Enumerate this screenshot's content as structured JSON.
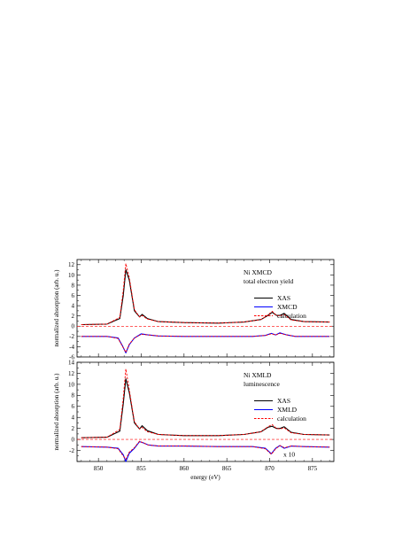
{
  "figure": {
    "xlabel": "energy (eV)",
    "x_ticks": [
      850,
      855,
      860,
      865,
      870,
      875
    ],
    "xlim": [
      847.5,
      877.5
    ]
  },
  "colors": {
    "xas": "#000000",
    "dichroism": "#0000ff",
    "calculation": "#ff0000",
    "zero_line": "#ff0000"
  },
  "chart_data": [
    {
      "type": "line",
      "panel": "top",
      "annotation_lines": [
        "Ni XMCD",
        "total electron yield"
      ],
      "ylabel": "normalized absorption (arb. u.)",
      "ylim": [
        -6,
        13
      ],
      "y_ticks": [
        -6,
        -4,
        -2,
        0,
        2,
        4,
        6,
        8,
        10,
        12
      ],
      "grid": false,
      "legend_placement": "right",
      "series": [
        {
          "name": "XAS",
          "style": "solid",
          "color": "#000000",
          "x": [
            848,
            851,
            852.5,
            852.9,
            853.2,
            853.6,
            854.2,
            854.8,
            855.1,
            855.7,
            857,
            860,
            864,
            867,
            869,
            869.8,
            870.3,
            870.8,
            871.2,
            871.7,
            872.5,
            874,
            877
          ],
          "y": [
            0.3,
            0.4,
            1.5,
            6.0,
            11.0,
            9.0,
            3.0,
            1.8,
            2.3,
            1.5,
            0.9,
            0.7,
            0.6,
            0.8,
            1.3,
            2.1,
            2.7,
            2.1,
            2.1,
            2.5,
            1.3,
            0.9,
            0.8
          ]
        },
        {
          "name": "XMCD",
          "style": "solid",
          "color": "#0000ff",
          "x": [
            848,
            851,
            852.3,
            852.8,
            853.2,
            853.6,
            854.2,
            855,
            855.8,
            857,
            860,
            864,
            868,
            869.5,
            870.2,
            870.7,
            871.2,
            872,
            873,
            877
          ],
          "y": [
            -2.0,
            -2.0,
            -2.3,
            -3.8,
            -5.2,
            -3.6,
            -2.3,
            -1.5,
            -1.7,
            -1.9,
            -2.0,
            -2.0,
            -2.0,
            -1.8,
            -1.4,
            -1.7,
            -1.3,
            -1.7,
            -2.0,
            -2.0
          ]
        },
        {
          "name": "calculation",
          "style": "dashed",
          "color": "#ff0000",
          "x": [
            848,
            851,
            852.5,
            852.9,
            853.2,
            853.6,
            854.2,
            854.8,
            855.1,
            855.7,
            857,
            860,
            864,
            867,
            869,
            869.8,
            870.3,
            870.8,
            871.2,
            871.7,
            872.5,
            874,
            877
          ],
          "y": [
            0.3,
            0.4,
            1.7,
            7.0,
            12.2,
            9.5,
            3.2,
            1.8,
            2.1,
            1.4,
            0.9,
            0.7,
            0.6,
            0.8,
            1.3,
            2.2,
            2.9,
            2.1,
            2.0,
            2.3,
            1.2,
            0.9,
            0.8
          ]
        },
        {
          "name": "",
          "role": "calculation-dichroism",
          "style": "dashed",
          "color": "#ff0000",
          "x": [
            848,
            851,
            852.3,
            852.8,
            853.2,
            853.6,
            854.2,
            855,
            855.8,
            857,
            860,
            864,
            868,
            869.5,
            870.2,
            870.7,
            871.2,
            872,
            873,
            877
          ],
          "y": [
            -2.0,
            -2.0,
            -2.4,
            -3.9,
            -5.1,
            -3.5,
            -2.3,
            -1.6,
            -1.7,
            -1.9,
            -2.0,
            -2.0,
            -2.0,
            -1.8,
            -1.5,
            -1.7,
            -1.4,
            -1.7,
            -2.0,
            -2.0
          ]
        }
      ],
      "reference_lines": [
        {
          "y": 0,
          "style": "dashed",
          "color": "#ff0000"
        }
      ]
    },
    {
      "type": "line",
      "panel": "bottom",
      "annotation_lines": [
        "Ni XMLD",
        "luminescence"
      ],
      "scale_note": "x 10",
      "ylabel": "normalized absorption (arb. u.)",
      "ylim": [
        -4,
        14
      ],
      "y_ticks": [
        -4,
        -2,
        0,
        2,
        4,
        6,
        8,
        10,
        12,
        14
      ],
      "grid": false,
      "legend_placement": "right",
      "series": [
        {
          "name": "XAS",
          "style": "solid",
          "color": "#000000",
          "x": [
            848,
            851,
            852.5,
            852.9,
            853.2,
            853.6,
            854.2,
            854.8,
            855.1,
            855.7,
            857,
            860,
            864,
            867,
            869,
            869.8,
            870.3,
            870.8,
            871.2,
            871.7,
            872.5,
            874,
            877
          ],
          "y": [
            0.3,
            0.4,
            1.5,
            6.5,
            11.0,
            8.5,
            3.0,
            1.9,
            2.5,
            1.6,
            0.9,
            0.7,
            0.7,
            0.9,
            1.4,
            2.2,
            2.4,
            2.0,
            2.0,
            2.3,
            1.3,
            0.9,
            0.8
          ]
        },
        {
          "name": "XMLD",
          "style": "solid",
          "color": "#0000ff",
          "x": [
            848,
            851,
            852.3,
            852.9,
            853.2,
            853.6,
            854.2,
            854.8,
            855.2,
            855.8,
            857,
            860,
            864,
            868,
            869.5,
            870.2,
            870.7,
            871.2,
            871.7,
            872.5,
            874,
            877
          ],
          "y": [
            -1.3,
            -1.4,
            -1.6,
            -2.8,
            -4.0,
            -2.5,
            -1.6,
            -0.4,
            -0.6,
            -1.0,
            -1.2,
            -1.2,
            -1.3,
            -1.3,
            -1.6,
            -2.6,
            -1.6,
            -1.1,
            -1.6,
            -1.2,
            -1.3,
            -1.4
          ]
        },
        {
          "name": "calculation",
          "style": "dashed",
          "color": "#ff0000",
          "x": [
            848,
            851,
            852.5,
            852.9,
            853.2,
            853.6,
            854.2,
            854.8,
            855.1,
            855.7,
            857,
            860,
            864,
            867,
            869,
            869.8,
            870.3,
            870.8,
            871.2,
            871.7,
            872.5,
            874,
            877
          ],
          "y": [
            0.3,
            0.4,
            1.8,
            7.5,
            12.8,
            9.0,
            3.2,
            1.9,
            2.2,
            1.4,
            0.9,
            0.7,
            0.7,
            0.9,
            1.4,
            2.3,
            2.7,
            2.0,
            1.9,
            2.1,
            1.2,
            0.9,
            0.8
          ]
        },
        {
          "name": "",
          "role": "calculation-dichroism",
          "style": "dashed",
          "color": "#ff0000",
          "x": [
            848,
            851,
            852.3,
            852.9,
            853.2,
            853.6,
            854.2,
            854.8,
            855.2,
            855.8,
            857,
            860,
            864,
            868,
            869.5,
            870.2,
            870.7,
            871.2,
            871.7,
            872.5,
            874,
            877
          ],
          "y": [
            -1.3,
            -1.4,
            -1.7,
            -3.0,
            -3.6,
            -2.3,
            -1.5,
            -0.3,
            -0.6,
            -1.0,
            -1.2,
            -1.2,
            -1.3,
            -1.3,
            -1.7,
            -2.7,
            -1.7,
            -1.1,
            -1.5,
            -1.2,
            -1.3,
            -1.4
          ]
        }
      ],
      "reference_lines": [
        {
          "y": 0,
          "style": "dashed",
          "color": "#ff0000"
        }
      ]
    }
  ]
}
